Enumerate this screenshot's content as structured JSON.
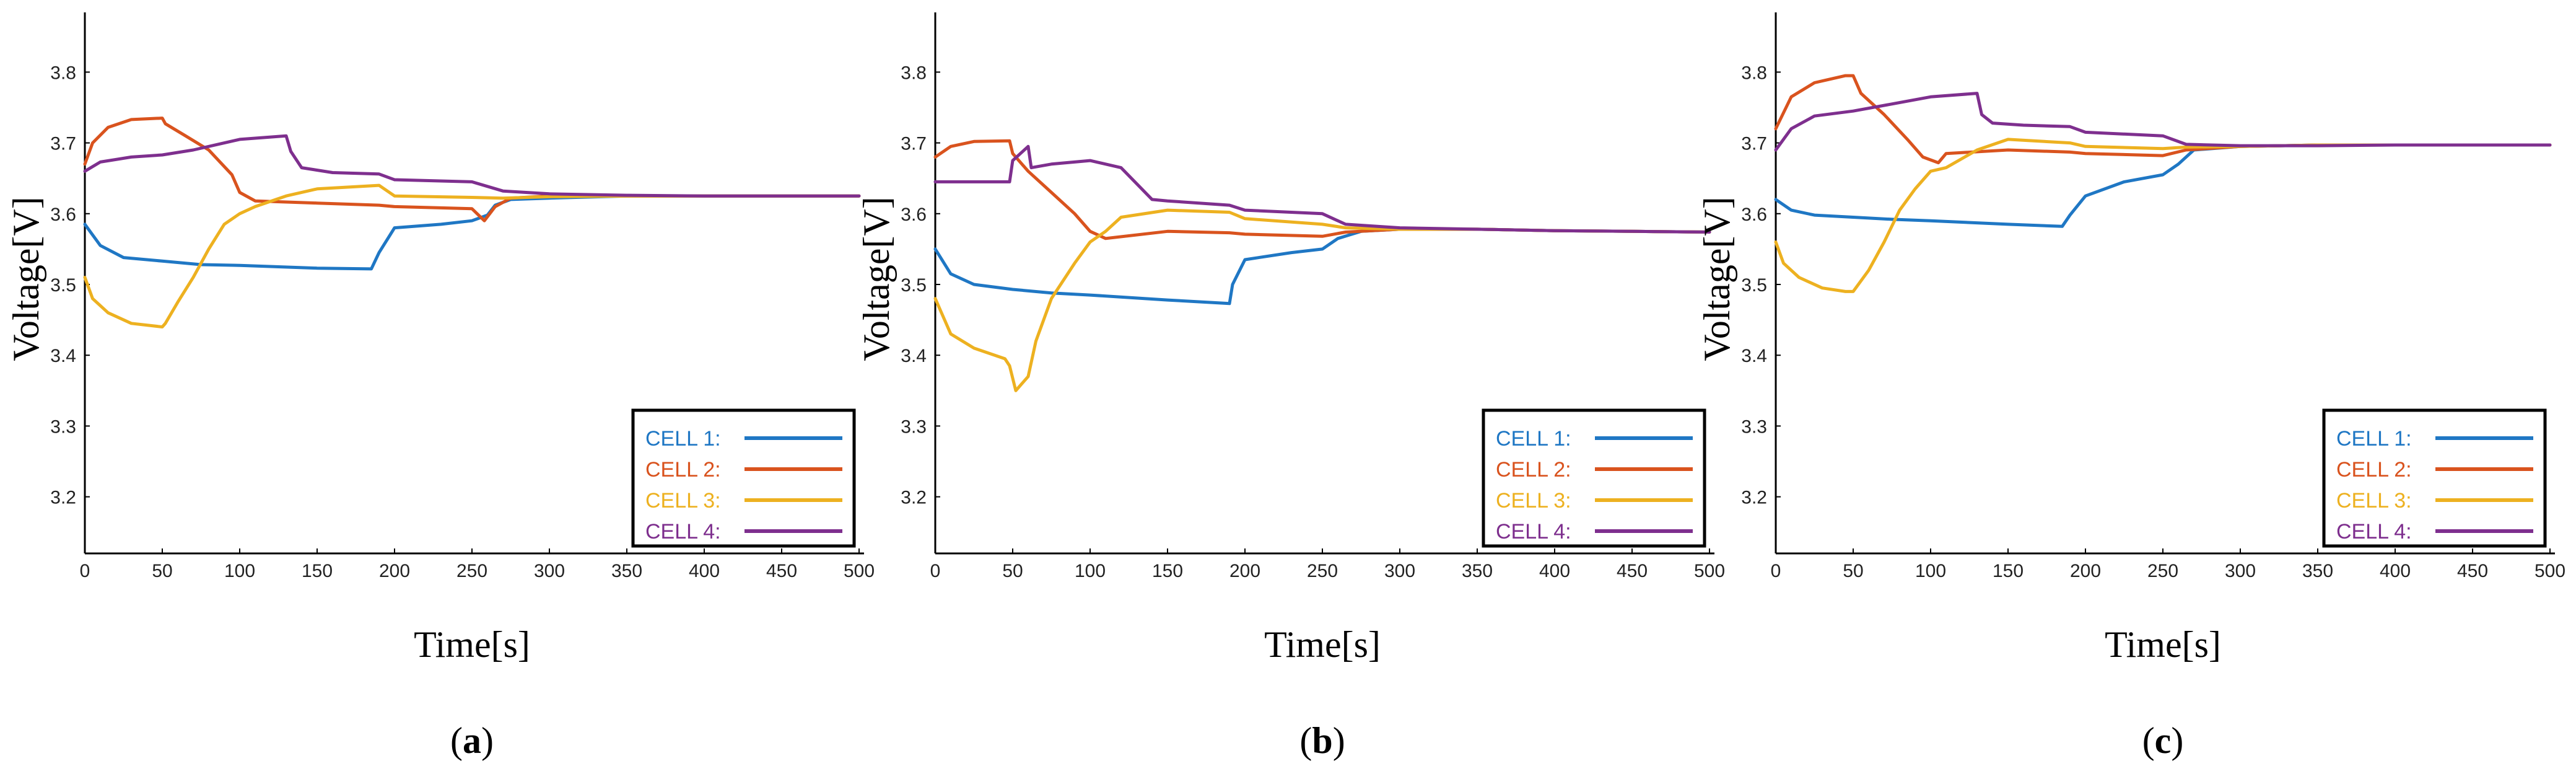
{
  "chart_data": [
    {
      "panel": "(a)",
      "type": "line",
      "xlabel": "Time[s]",
      "ylabel": "Voltage[V]",
      "xlim": [
        0,
        500
      ],
      "ylim": [
        3.12,
        3.88
      ],
      "xticks": [
        0,
        50,
        100,
        150,
        200,
        250,
        300,
        350,
        400,
        450,
        500
      ],
      "yticks": [
        "3.2",
        "3.3",
        "3.4",
        "3.5",
        "3.6",
        "3.7",
        "3.8"
      ],
      "legend_position": "bottom-right",
      "series": [
        {
          "name": "CELL 1:",
          "x": [
            0,
            10,
            25,
            50,
            75,
            100,
            150,
            185,
            190,
            200,
            230,
            250,
            260,
            265,
            275,
            300,
            350,
            400,
            450,
            500
          ],
          "y": [
            3.585,
            3.555,
            3.538,
            3.533,
            3.528,
            3.527,
            3.523,
            3.522,
            3.545,
            3.58,
            3.585,
            3.59,
            3.598,
            3.612,
            3.62,
            3.622,
            3.625,
            3.625,
            3.625,
            3.625
          ]
        },
        {
          "name": "CELL 2:",
          "x": [
            0,
            5,
            15,
            30,
            50,
            52,
            65,
            80,
            95,
            100,
            110,
            150,
            190,
            200,
            250,
            258,
            265,
            275,
            300,
            350,
            400,
            450,
            500
          ],
          "y": [
            3.67,
            3.7,
            3.722,
            3.733,
            3.735,
            3.727,
            3.71,
            3.69,
            3.655,
            3.63,
            3.618,
            3.615,
            3.612,
            3.61,
            3.607,
            3.59,
            3.61,
            3.622,
            3.625,
            3.625,
            3.625,
            3.625,
            3.625
          ]
        },
        {
          "name": "CELL 3:",
          "x": [
            0,
            5,
            15,
            30,
            50,
            52,
            60,
            70,
            80,
            90,
            100,
            110,
            130,
            150,
            190,
            200,
            250,
            270,
            300,
            350,
            400,
            450,
            500
          ],
          "y": [
            3.51,
            3.48,
            3.46,
            3.445,
            3.44,
            3.445,
            3.475,
            3.51,
            3.55,
            3.585,
            3.6,
            3.61,
            3.625,
            3.635,
            3.64,
            3.625,
            3.623,
            3.622,
            3.624,
            3.625,
            3.625,
            3.625,
            3.625
          ]
        },
        {
          "name": "CELL 4:",
          "x": [
            0,
            10,
            30,
            50,
            70,
            100,
            130,
            133,
            140,
            160,
            190,
            200,
            250,
            270,
            300,
            350,
            400,
            450,
            500
          ],
          "y": [
            3.66,
            3.673,
            3.68,
            3.683,
            3.69,
            3.705,
            3.71,
            3.688,
            3.665,
            3.658,
            3.656,
            3.648,
            3.645,
            3.632,
            3.628,
            3.626,
            3.625,
            3.625,
            3.625
          ]
        }
      ]
    },
    {
      "panel": "(b)",
      "type": "line",
      "xlabel": "Time[s]",
      "ylabel": "Voltage[V]",
      "xlim": [
        0,
        500
      ],
      "ylim": [
        3.12,
        3.88
      ],
      "xticks": [
        0,
        50,
        100,
        150,
        200,
        250,
        300,
        350,
        400,
        450,
        500
      ],
      "yticks": [
        "3.2",
        "3.3",
        "3.4",
        "3.5",
        "3.6",
        "3.7",
        "3.8"
      ],
      "legend_position": "bottom-right",
      "series": [
        {
          "name": "CELL 1:",
          "x": [
            0,
            10,
            25,
            50,
            75,
            100,
            150,
            190,
            192,
            200,
            230,
            250,
            260,
            275,
            300,
            350,
            400,
            450,
            500
          ],
          "y": [
            3.55,
            3.515,
            3.5,
            3.493,
            3.488,
            3.485,
            3.478,
            3.473,
            3.5,
            3.535,
            3.545,
            3.55,
            3.565,
            3.575,
            3.578,
            3.578,
            3.576,
            3.575,
            3.574
          ]
        },
        {
          "name": "CELL 2:",
          "x": [
            0,
            10,
            25,
            48,
            50,
            60,
            75,
            90,
            100,
            110,
            150,
            190,
            200,
            250,
            265,
            300,
            350,
            400,
            450,
            500
          ],
          "y": [
            3.68,
            3.695,
            3.702,
            3.703,
            3.685,
            3.66,
            3.63,
            3.6,
            3.575,
            3.565,
            3.575,
            3.573,
            3.571,
            3.568,
            3.574,
            3.578,
            3.578,
            3.576,
            3.575,
            3.574
          ]
        },
        {
          "name": "CELL 3:",
          "x": [
            0,
            10,
            25,
            45,
            48,
            52,
            60,
            65,
            75,
            90,
            100,
            110,
            120,
            150,
            190,
            200,
            250,
            265,
            300,
            350,
            400,
            450,
            500
          ],
          "y": [
            3.48,
            3.43,
            3.41,
            3.395,
            3.385,
            3.35,
            3.37,
            3.42,
            3.48,
            3.53,
            3.56,
            3.575,
            3.595,
            3.605,
            3.602,
            3.593,
            3.585,
            3.58,
            3.578,
            3.578,
            3.576,
            3.575,
            3.574
          ]
        },
        {
          "name": "CELL 4:",
          "x": [
            0,
            30,
            48,
            50,
            55,
            60,
            62,
            75,
            100,
            120,
            140,
            150,
            190,
            200,
            250,
            265,
            300,
            350,
            400,
            450,
            500
          ],
          "y": [
            3.645,
            3.645,
            3.645,
            3.675,
            3.685,
            3.695,
            3.665,
            3.67,
            3.675,
            3.665,
            3.62,
            3.618,
            3.612,
            3.605,
            3.6,
            3.585,
            3.58,
            3.578,
            3.576,
            3.575,
            3.574
          ]
        }
      ]
    },
    {
      "panel": "(c)",
      "type": "line",
      "xlabel": "Time[s]",
      "ylabel": "Voltage[V]",
      "xlim": [
        0,
        500
      ],
      "ylim": [
        3.12,
        3.88
      ],
      "xticks": [
        0,
        50,
        100,
        150,
        200,
        250,
        300,
        350,
        400,
        450,
        500
      ],
      "yticks": [
        "3.2",
        "3.3",
        "3.4",
        "3.5",
        "3.6",
        "3.7",
        "3.8"
      ],
      "legend_position": "bottom-right",
      "series": [
        {
          "name": "CELL 1:",
          "x": [
            0,
            10,
            25,
            50,
            75,
            100,
            150,
            185,
            190,
            200,
            225,
            250,
            260,
            270,
            300,
            350,
            400,
            450,
            500
          ],
          "y": [
            3.62,
            3.605,
            3.598,
            3.595,
            3.592,
            3.59,
            3.585,
            3.582,
            3.598,
            3.625,
            3.645,
            3.655,
            3.67,
            3.69,
            3.695,
            3.697,
            3.697,
            3.697,
            3.697
          ]
        },
        {
          "name": "CELL 2:",
          "x": [
            0,
            10,
            25,
            45,
            50,
            55,
            70,
            85,
            95,
            105,
            110,
            150,
            190,
            200,
            250,
            265,
            300,
            350,
            400,
            450,
            500
          ],
          "y": [
            3.72,
            3.765,
            3.785,
            3.795,
            3.795,
            3.77,
            3.74,
            3.705,
            3.68,
            3.672,
            3.685,
            3.69,
            3.687,
            3.685,
            3.682,
            3.69,
            3.695,
            3.697,
            3.697,
            3.697,
            3.697
          ]
        },
        {
          "name": "CELL 3:",
          "x": [
            0,
            5,
            15,
            30,
            45,
            50,
            60,
            70,
            80,
            90,
            100,
            110,
            130,
            150,
            190,
            200,
            250,
            265,
            300,
            350,
            400,
            450,
            500
          ],
          "y": [
            3.56,
            3.53,
            3.51,
            3.495,
            3.49,
            3.49,
            3.52,
            3.56,
            3.605,
            3.635,
            3.66,
            3.665,
            3.69,
            3.705,
            3.7,
            3.695,
            3.692,
            3.694,
            3.695,
            3.697,
            3.697,
            3.697,
            3.697
          ]
        },
        {
          "name": "CELL 4:",
          "x": [
            0,
            10,
            25,
            50,
            75,
            100,
            130,
            133,
            140,
            160,
            190,
            200,
            250,
            265,
            300,
            350,
            400,
            450,
            500
          ],
          "y": [
            3.69,
            3.72,
            3.738,
            3.745,
            3.755,
            3.765,
            3.77,
            3.74,
            3.728,
            3.725,
            3.723,
            3.715,
            3.71,
            3.698,
            3.696,
            3.696,
            3.697,
            3.697,
            3.697
          ]
        }
      ]
    }
  ],
  "colors": {
    "CELL 1:": "#1f77c4",
    "CELL 2:": "#d9531e",
    "CELL 3:": "#edb120",
    "CELL 4:": "#7e2f8e"
  }
}
